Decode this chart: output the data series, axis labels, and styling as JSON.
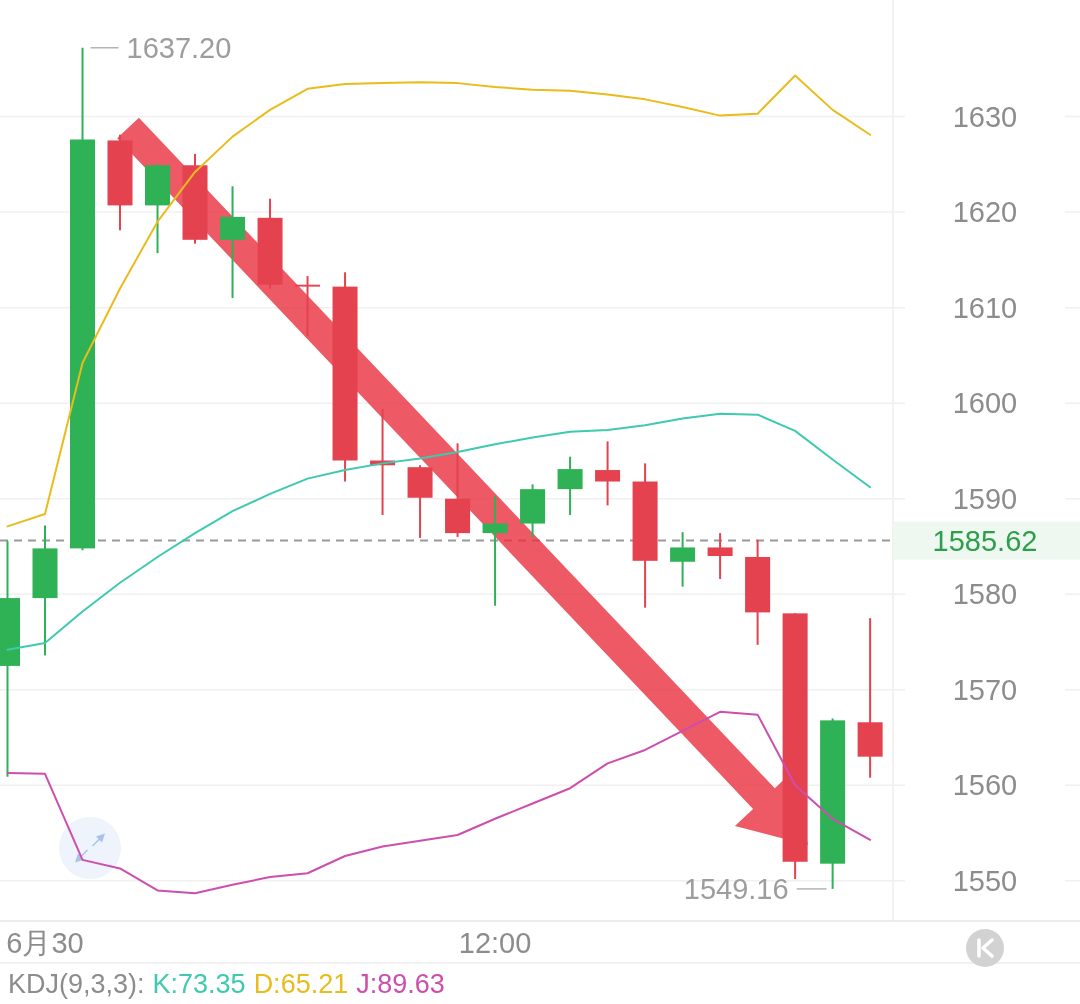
{
  "chart_data": {
    "type": "candlestick",
    "categories": [
      null,
      "6月30",
      null,
      null,
      null,
      null,
      null,
      null,
      null,
      null,
      null,
      null,
      null,
      "12:00",
      null,
      null,
      null,
      null,
      null,
      null,
      null,
      null,
      null,
      null
    ],
    "ohlc": [
      [
        1572.5,
        1585.6,
        1560.9,
        1579.6
      ],
      [
        1579.6,
        1587.2,
        1573.6,
        1584.8
      ],
      [
        1584.8,
        1637.2,
        1584.6,
        1627.6
      ],
      [
        1627.5,
        1628.1,
        1618.1,
        1620.7
      ],
      [
        1620.7,
        1625.0,
        1615.7,
        1624.9
      ],
      [
        1624.9,
        1626.1,
        1616.7,
        1617.1
      ],
      [
        1617.1,
        1622.7,
        1611.0,
        1619.5
      ],
      [
        1619.4,
        1621.4,
        1612.0,
        1612.4
      ],
      [
        1612.4,
        1613.3,
        1607.0,
        1612.2
      ],
      [
        1612.2,
        1613.7,
        1591.8,
        1594.0
      ],
      [
        1594.0,
        1599.4,
        1588.3,
        1593.5
      ],
      [
        1593.3,
        1593.5,
        1585.9,
        1590.1
      ],
      [
        1590.0,
        1595.8,
        1586.0,
        1586.4
      ],
      [
        1586.4,
        1590.3,
        1578.8,
        1587.4
      ],
      [
        1587.4,
        1591.5,
        1586.0,
        1591.0
      ],
      [
        1591.0,
        1594.4,
        1588.3,
        1593.1
      ],
      [
        1593.0,
        1596.0,
        1589.3,
        1591.8
      ],
      [
        1591.8,
        1593.7,
        1578.6,
        1583.5
      ],
      [
        1583.4,
        1586.5,
        1580.8,
        1584.9
      ],
      [
        1584.9,
        1586.4,
        1581.6,
        1584.0
      ],
      [
        1583.9,
        1585.7,
        1574.7,
        1578.1
      ],
      [
        1578.0,
        1578.0,
        1550.2,
        1552.0
      ],
      [
        1551.8,
        1567.0,
        1549.16,
        1566.8
      ],
      [
        1566.6,
        1577.5,
        1560.8,
        1563.0
      ]
    ],
    "colors": [
      "#2fb155",
      "#2fb155",
      "#2fb155",
      "#e5424f",
      "#2fb155",
      "#e5424f",
      "#2fb155",
      "#e5424f",
      "#e5424f",
      "#e5424f",
      "#e5424f",
      "#e5424f",
      "#e5424f",
      "#2fb155",
      "#2fb155",
      "#2fb155",
      "#e5424f",
      "#e5424f",
      "#2fb155",
      "#e5424f",
      "#e5424f",
      "#e5424f",
      "#2fb155",
      "#e5424f"
    ],
    "series": [
      {
        "type": "line",
        "color": "#e9bc1d",
        "values": [
          1587.1,
          1588.4,
          1604.2,
          1612.0,
          1619.0,
          1624.2,
          1627.9,
          1630.7,
          1632.9,
          1633.4,
          1633.5,
          1633.6,
          1633.5,
          1633.1,
          1632.8,
          1632.7,
          1632.3,
          1631.8,
          1631.0,
          1630.1,
          1630.3,
          1634.3,
          1630.7,
          1628.1
        ]
      },
      {
        "type": "line",
        "color": "#3fc9b0",
        "values": [
          1574.2,
          1574.9,
          1578.2,
          1581.2,
          1583.9,
          1586.4,
          1588.7,
          1590.5,
          1592.1,
          1593.0,
          1593.7,
          1594.2,
          1594.9,
          1595.7,
          1596.4,
          1597.0,
          1597.2,
          1597.7,
          1598.4,
          1598.9,
          1598.8,
          1597.1,
          1594.1,
          1591.2
        ]
      },
      {
        "type": "line",
        "color": "#cc4fae",
        "values": [
          1561.3,
          1561.2,
          1552.2,
          1551.3,
          1549.0,
          1548.7,
          1549.6,
          1550.4,
          1550.8,
          1552.6,
          1553.6,
          1554.2,
          1554.8,
          1556.5,
          1558.1,
          1559.7,
          1562.3,
          1563.7,
          1565.7,
          1567.7,
          1567.4,
          1560.0,
          1556.5,
          1554.3
        ]
      }
    ],
    "ylim": [
      1545.8,
      1642.2
    ],
    "yticks": [
      1550,
      1560,
      1570,
      1580,
      1590,
      1600,
      1610,
      1620,
      1630
    ],
    "grid": "y",
    "ref_lines": [
      {
        "axis": "y",
        "value": 1585.62,
        "label": "1585.62",
        "color": "#9a9a9a",
        "line_style": "dashed"
      }
    ],
    "annotations": [
      "1637.20",
      "1549.16",
      "KDJ(9,3,3):",
      "K:73.35",
      "D:65.21",
      "J:89.63"
    ]
  }
}
